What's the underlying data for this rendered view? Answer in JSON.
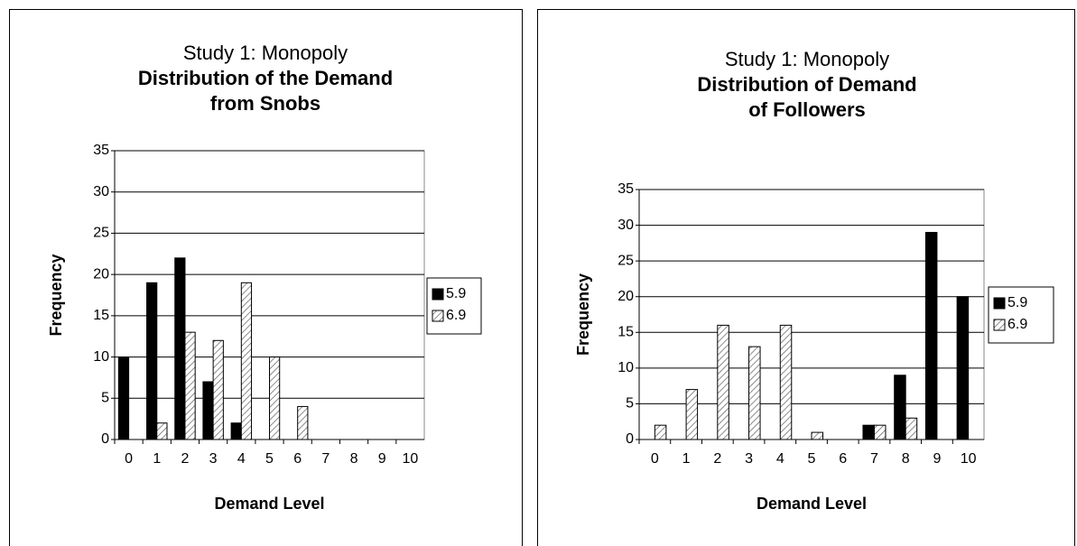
{
  "chart_data": [
    {
      "type": "bar",
      "title": "Study 1: Monopoly",
      "subtitle": [
        "Distribution of the Demand",
        "from Snobs"
      ],
      "x_label": "Demand Level",
      "y_label": "Frequency",
      "categories": [
        "0",
        "1",
        "2",
        "3",
        "4",
        "5",
        "6",
        "7",
        "8",
        "9",
        "10"
      ],
      "series": [
        {
          "name": "5.9",
          "color": "#000000",
          "hatch": false,
          "values": [
            10,
            19,
            22,
            7,
            2,
            0,
            0,
            0,
            0,
            0,
            0
          ]
        },
        {
          "name": "6.9",
          "color": "#ffffff",
          "hatch": true,
          "values": [
            0,
            2,
            13,
            12,
            19,
            10,
            4,
            0,
            0,
            0,
            0
          ]
        }
      ],
      "ylim": [
        0,
        35
      ],
      "yticks": [
        0,
        5,
        10,
        15,
        20,
        25,
        30,
        35
      ],
      "grid": true,
      "legend": "right"
    },
    {
      "type": "bar",
      "title": "Study 1: Monopoly",
      "subtitle": [
        "Distribution of Demand",
        "of Followers"
      ],
      "x_label": "Demand Level",
      "y_label": "Frequency",
      "categories": [
        "0",
        "1",
        "2",
        "3",
        "4",
        "5",
        "6",
        "7",
        "8",
        "9",
        "10"
      ],
      "series": [
        {
          "name": "5.9",
          "color": "#000000",
          "hatch": false,
          "values": [
            0,
            0,
            0,
            0,
            0,
            0,
            0,
            2,
            9,
            29,
            20
          ]
        },
        {
          "name": "6.9",
          "color": "#ffffff",
          "hatch": true,
          "values": [
            2,
            7,
            16,
            13,
            16,
            1,
            0,
            2,
            3,
            0,
            0
          ]
        }
      ],
      "ylim": [
        0,
        35
      ],
      "yticks": [
        0,
        5,
        10,
        15,
        20,
        25,
        30,
        35
      ],
      "grid": true,
      "legend": "right"
    }
  ]
}
